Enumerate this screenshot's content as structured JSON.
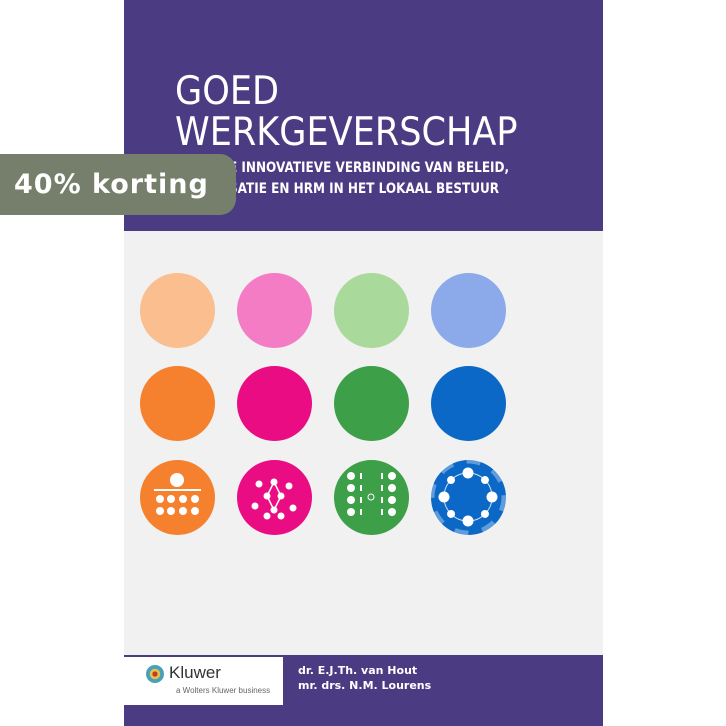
{
  "badge": {
    "label": "40% korting",
    "color": "#767e6c"
  },
  "cover": {
    "title_line1": "GOED",
    "title_line2": "WERKGEVERSCHAP",
    "subtitle_line1_visible": "E INNOVATIEVE VERBINDING VAN BELEID,",
    "subtitle_line2_visible": "SATIE EN HRM IN HET LOKAAL BESTUUR",
    "accent_color": "#4b3b82",
    "circle_colors": {
      "row1": [
        "#fbbe8e",
        "#f47cc4",
        "#a9d99b",
        "#8caae9"
      ],
      "row2": [
        "#f5812f",
        "#ea0c82",
        "#3d9f47",
        "#0b68c6"
      ],
      "row3": [
        "#f5812f",
        "#ea0c82",
        "#3d9f47",
        "#0b68c6"
      ]
    },
    "icons": [
      "hierarchy-icon",
      "network-icon",
      "columns-icon",
      "ring-icon"
    ],
    "publisher": {
      "name": "Kluwer",
      "tagline": "a Wolters Kluwer business"
    },
    "authors": [
      "dr. E.J.Th. van Hout",
      "mr. drs. N.M. Lourens"
    ]
  }
}
